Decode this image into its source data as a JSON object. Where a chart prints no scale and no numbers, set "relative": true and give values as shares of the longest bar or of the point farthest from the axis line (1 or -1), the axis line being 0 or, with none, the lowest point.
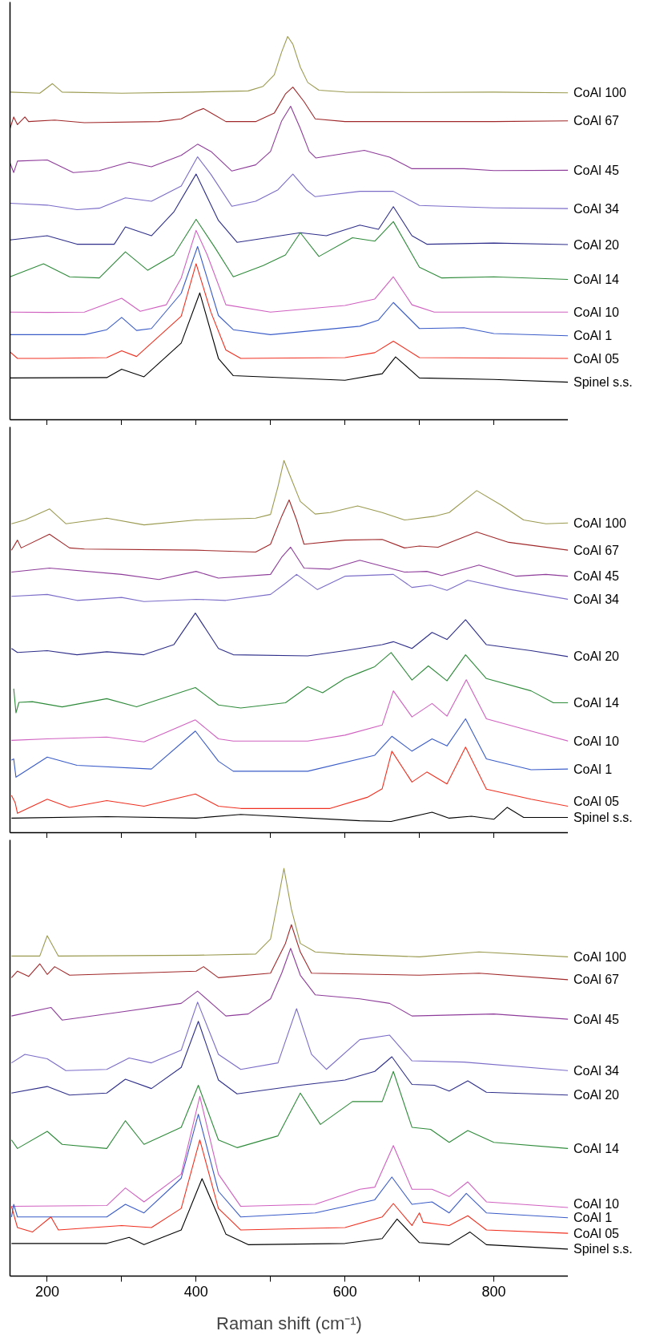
{
  "chart_data": [
    {
      "type": "line",
      "relative": true,
      "xlim": [
        150,
        900
      ],
      "xticks": [
        200,
        300,
        400,
        500,
        600,
        700,
        800
      ],
      "tick_labels": false,
      "series": [
        {
          "name": "CoAl 100",
          "color": "#9a9a50",
          "x": [
            150,
            190,
            207,
            220,
            300,
            400,
            470,
            490,
            505,
            515,
            523,
            530,
            540,
            550,
            565,
            600,
            700,
            800,
            900
          ],
          "values": [
            0.855,
            0.852,
            0.877,
            0.855,
            0.852,
            0.855,
            0.858,
            0.87,
            0.9,
            0.96,
            1.0,
            0.98,
            0.92,
            0.88,
            0.86,
            0.855,
            0.854,
            0.855,
            0.853
          ]
        },
        {
          "name": "CoAl 67",
          "color": "#a0282a",
          "x": [
            150,
            155,
            160,
            170,
            175,
            210,
            250,
            350,
            380,
            400,
            410,
            425,
            440,
            480,
            505,
            520,
            530,
            545,
            560,
            600,
            700,
            800,
            900
          ],
          "values": [
            0.76,
            0.79,
            0.77,
            0.79,
            0.778,
            0.782,
            0.775,
            0.778,
            0.785,
            0.805,
            0.812,
            0.795,
            0.778,
            0.778,
            0.8,
            0.85,
            0.868,
            0.83,
            0.785,
            0.778,
            0.778,
            0.778,
            0.78
          ]
        },
        {
          "name": "CoAl 45",
          "color": "#8e3c9a",
          "x": [
            150,
            155,
            160,
            200,
            235,
            270,
            310,
            340,
            380,
            402,
            420,
            448,
            480,
            500,
            515,
            527,
            540,
            552,
            561,
            626,
            660,
            690,
            760,
            800,
            900
          ],
          "values": [
            0.67,
            0.645,
            0.675,
            0.678,
            0.645,
            0.65,
            0.672,
            0.66,
            0.69,
            0.719,
            0.7,
            0.649,
            0.665,
            0.7,
            0.78,
            0.818,
            0.76,
            0.7,
            0.683,
            0.703,
            0.685,
            0.655,
            0.655,
            0.65,
            0.651
          ]
        },
        {
          "name": "CoAl 34",
          "color": "#7b6cc8",
          "x": [
            150,
            200,
            240,
            270,
            305,
            340,
            380,
            402,
            420,
            448,
            480,
            510,
            530,
            548,
            560,
            620,
            665,
            700,
            800,
            900
          ],
          "values": [
            0.565,
            0.56,
            0.548,
            0.552,
            0.579,
            0.57,
            0.61,
            0.686,
            0.64,
            0.557,
            0.57,
            0.6,
            0.641,
            0.6,
            0.582,
            0.596,
            0.596,
            0.559,
            0.553,
            0.551
          ]
        },
        {
          "name": "CoAl 20",
          "color": "#2e2e8a",
          "x": [
            150,
            200,
            240,
            290,
            305,
            340,
            370,
            400,
            430,
            455,
            540,
            575,
            620,
            645,
            665,
            690,
            710,
            800,
            900
          ],
          "values": [
            0.469,
            0.48,
            0.458,
            0.458,
            0.503,
            0.48,
            0.542,
            0.641,
            0.52,
            0.463,
            0.488,
            0.48,
            0.508,
            0.497,
            0.556,
            0.48,
            0.458,
            0.461,
            0.457
          ]
        },
        {
          "name": "CoAl 14",
          "color": "#2e8b3a",
          "x": [
            150,
            195,
            230,
            270,
            305,
            335,
            370,
            400,
            425,
            450,
            490,
            520,
            540,
            565,
            610,
            640,
            665,
            700,
            730,
            800,
            900
          ],
          "values": [
            0.373,
            0.407,
            0.373,
            0.37,
            0.438,
            0.39,
            0.43,
            0.523,
            0.45,
            0.373,
            0.402,
            0.43,
            0.488,
            0.426,
            0.475,
            0.466,
            0.517,
            0.398,
            0.37,
            0.373,
            0.366
          ]
        },
        {
          "name": "CoAl 10",
          "color": "#d060c0",
          "x": [
            150,
            200,
            250,
            300,
            325,
            360,
            380,
            400,
            415,
            440,
            500,
            600,
            640,
            665,
            690,
            720,
            900
          ],
          "values": [
            0.281,
            0.28,
            0.281,
            0.317,
            0.283,
            0.3,
            0.37,
            0.494,
            0.43,
            0.3,
            0.281,
            0.298,
            0.315,
            0.373,
            0.3,
            0.281,
            0.281
          ]
        },
        {
          "name": "CoAl 1",
          "color": "#3a5cc8",
          "x": [
            150,
            250,
            280,
            300,
            320,
            340,
            380,
            402,
            430,
            450,
            500,
            620,
            645,
            665,
            700,
            760,
            800,
            900
          ],
          "values": [
            0.222,
            0.222,
            0.235,
            0.267,
            0.233,
            0.238,
            0.33,
            0.452,
            0.272,
            0.235,
            0.222,
            0.244,
            0.26,
            0.306,
            0.238,
            0.24,
            0.225,
            0.219
          ]
        },
        {
          "name": "CoAl 05",
          "color": "#f03020",
          "x": [
            150,
            160,
            200,
            280,
            300,
            320,
            380,
            400,
            420,
            440,
            460,
            600,
            640,
            665,
            700,
            900
          ],
          "values": [
            0.177,
            0.16,
            0.16,
            0.162,
            0.18,
            0.165,
            0.27,
            0.407,
            0.28,
            0.182,
            0.16,
            0.162,
            0.175,
            0.205,
            0.162,
            0.16
          ]
        },
        {
          "name": "Spinel s.s.",
          "color": "#000000",
          "x": [
            150,
            280,
            300,
            330,
            380,
            405,
            430,
            450,
            600,
            650,
            668,
            700,
            800,
            900
          ],
          "values": [
            0.109,
            0.11,
            0.132,
            0.112,
            0.2,
            0.331,
            0.16,
            0.115,
            0.103,
            0.12,
            0.164,
            0.109,
            0.105,
            0.098
          ]
        }
      ]
    },
    {
      "type": "line",
      "relative": true,
      "xlim": [
        150,
        900
      ],
      "xticks": [
        200,
        300,
        400,
        500,
        600,
        700,
        800
      ],
      "tick_labels": false,
      "series": [
        {
          "name": "CoAl 100",
          "color": "#9a9a50",
          "x": [
            152,
            170,
            203,
            225,
            280,
            330,
            400,
            480,
            500,
            510,
            518,
            528,
            540,
            560,
            580,
            617,
            650,
            680,
            720,
            740,
            777,
            810,
            840,
            870,
            900
          ],
          "values": [
            0.83,
            0.84,
            0.87,
            0.83,
            0.845,
            0.827,
            0.84,
            0.845,
            0.855,
            0.93,
            1.0,
            0.95,
            0.89,
            0.856,
            0.86,
            0.878,
            0.86,
            0.84,
            0.85,
            0.86,
            0.919,
            0.88,
            0.84,
            0.83,
            0.832
          ]
        },
        {
          "name": "CoAl 67",
          "color": "#a0282a",
          "x": [
            152,
            160,
            165,
            203,
            230,
            250,
            400,
            480,
            500,
            515,
            525,
            535,
            545,
            600,
            650,
            680,
            700,
            725,
            777,
            820,
            900
          ],
          "values": [
            0.759,
            0.786,
            0.765,
            0.802,
            0.765,
            0.762,
            0.759,
            0.754,
            0.775,
            0.85,
            0.894,
            0.84,
            0.775,
            0.786,
            0.788,
            0.765,
            0.77,
            0.767,
            0.808,
            0.78,
            0.759
          ]
        },
        {
          "name": "CoAl 45",
          "color": "#8e3c9a",
          "x": [
            152,
            203,
            300,
            350,
            400,
            430,
            500,
            515,
            527,
            545,
            580,
            620,
            680,
            710,
            730,
            780,
            830,
            870,
            900
          ],
          "values": [
            0.7,
            0.711,
            0.694,
            0.68,
            0.702,
            0.684,
            0.694,
            0.74,
            0.767,
            0.711,
            0.708,
            0.732,
            0.7,
            0.702,
            0.691,
            0.719,
            0.689,
            0.694,
            0.689
          ]
        },
        {
          "name": "CoAl 34",
          "color": "#7b6cc8",
          "x": [
            152,
            200,
            240,
            300,
            330,
            400,
            440,
            500,
            520,
            535,
            563,
            600,
            665,
            690,
            715,
            737,
            765,
            820,
            900
          ],
          "values": [
            0.635,
            0.64,
            0.624,
            0.632,
            0.621,
            0.627,
            0.624,
            0.64,
            0.67,
            0.694,
            0.653,
            0.689,
            0.694,
            0.659,
            0.665,
            0.651,
            0.678,
            0.654,
            0.627
          ]
        },
        {
          "name": "CoAl 20",
          "color": "#2e2e8a",
          "x": [
            152,
            160,
            200,
            240,
            280,
            330,
            370,
            399,
            430,
            450,
            550,
            600,
            650,
            665,
            690,
            717,
            737,
            762,
            790,
            850,
            900
          ],
          "values": [
            0.495,
            0.484,
            0.489,
            0.478,
            0.486,
            0.478,
            0.505,
            0.59,
            0.495,
            0.478,
            0.475,
            0.489,
            0.505,
            0.513,
            0.495,
            0.538,
            0.519,
            0.572,
            0.505,
            0.489,
            0.473
          ]
        },
        {
          "name": "CoAl 14",
          "color": "#2e8b3a",
          "x": [
            155,
            158,
            162,
            180,
            220,
            280,
            320,
            399,
            430,
            460,
            520,
            550,
            570,
            600,
            620,
            640,
            662,
            690,
            712,
            737,
            762,
            790,
            850,
            880,
            900
          ],
          "values": [
            0.387,
            0.322,
            0.35,
            0.352,
            0.338,
            0.36,
            0.338,
            0.39,
            0.343,
            0.335,
            0.349,
            0.392,
            0.376,
            0.414,
            0.43,
            0.446,
            0.484,
            0.41,
            0.448,
            0.408,
            0.478,
            0.414,
            0.381,
            0.349,
            0.349
          ]
        },
        {
          "name": "CoAl 10",
          "color": "#d060c0",
          "x": [
            152,
            200,
            280,
            330,
            399,
            430,
            450,
            550,
            600,
            650,
            665,
            690,
            717,
            737,
            763,
            790,
            850,
            900
          ],
          "values": [
            0.248,
            0.252,
            0.257,
            0.244,
            0.303,
            0.252,
            0.246,
            0.246,
            0.262,
            0.289,
            0.381,
            0.311,
            0.347,
            0.313,
            0.411,
            0.306,
            0.273,
            0.246
          ]
        },
        {
          "name": "CoAl 1",
          "color": "#3a5cc8",
          "x": [
            152,
            155,
            158,
            200,
            240,
            340,
            399,
            430,
            450,
            550,
            640,
            663,
            690,
            717,
            737,
            762,
            790,
            850,
            900
          ],
          "values": [
            0.195,
            0.198,
            0.149,
            0.203,
            0.181,
            0.171,
            0.273,
            0.192,
            0.165,
            0.165,
            0.208,
            0.259,
            0.219,
            0.252,
            0.233,
            0.306,
            0.198,
            0.169,
            0.171
          ]
        },
        {
          "name": "CoAl 05",
          "color": "#f03020",
          "x": [
            152,
            157,
            160,
            200,
            230,
            280,
            330,
            399,
            430,
            460,
            580,
            630,
            650,
            663,
            690,
            710,
            737,
            762,
            790,
            850,
            900
          ],
          "values": [
            0.1,
            0.08,
            0.052,
            0.09,
            0.068,
            0.086,
            0.071,
            0.104,
            0.071,
            0.065,
            0.065,
            0.095,
            0.118,
            0.219,
            0.136,
            0.163,
            0.131,
            0.23,
            0.117,
            0.09,
            0.071
          ]
        },
        {
          "name": "Spinel s.s.",
          "color": "#000000",
          "x": [
            152,
            280,
            400,
            460,
            620,
            662,
            717,
            740,
            770,
            800,
            818,
            840,
            900
          ],
          "values": [
            0.039,
            0.043,
            0.039,
            0.049,
            0.032,
            0.03,
            0.055,
            0.039,
            0.044,
            0.036,
            0.068,
            0.041,
            0.041
          ]
        }
      ]
    },
    {
      "type": "line",
      "relative": true,
      "xlim": [
        150,
        900
      ],
      "xticks": [
        200,
        {
          "value": 300,
          "label": null
        },
        400,
        {
          "value": 500,
          "label": null
        },
        600,
        {
          "value": 700,
          "label": null
        },
        800
      ],
      "xlabel": "Raman shift (cm⁻¹)",
      "series": [
        {
          "name": "CoAl 100",
          "color": "#9a9a50",
          "x": [
            152,
            190,
            200,
            215,
            400,
            480,
            500,
            510,
            518,
            528,
            540,
            560,
            600,
            700,
            780,
            900
          ],
          "values": [
            0.785,
            0.785,
            0.835,
            0.785,
            0.787,
            0.79,
            0.827,
            0.921,
            1.0,
            0.9,
            0.816,
            0.795,
            0.79,
            0.783,
            0.795,
            0.783
          ]
        },
        {
          "name": "CoAl 67",
          "color": "#a0282a",
          "x": [
            152,
            160,
            175,
            190,
            200,
            210,
            230,
            400,
            410,
            430,
            500,
            520,
            528,
            540,
            555,
            700,
            780,
            900
          ],
          "values": [
            0.732,
            0.748,
            0.735,
            0.766,
            0.74,
            0.759,
            0.738,
            0.748,
            0.759,
            0.732,
            0.743,
            0.816,
            0.862,
            0.795,
            0.743,
            0.738,
            0.743,
            0.727
          ]
        },
        {
          "name": "CoAl 45",
          "color": "#8e3c9a",
          "x": [
            152,
            205,
            220,
            300,
            380,
            402,
            440,
            470,
            500,
            515,
            527,
            540,
            560,
            620,
            660,
            690,
            800,
            900
          ],
          "values": [
            0.638,
            0.659,
            0.628,
            0.648,
            0.669,
            0.699,
            0.638,
            0.643,
            0.68,
            0.743,
            0.804,
            0.738,
            0.69,
            0.68,
            0.669,
            0.638,
            0.643,
            0.63
          ]
        },
        {
          "name": "CoAl 34",
          "color": "#7b6cc8",
          "x": [
            152,
            170,
            200,
            225,
            280,
            310,
            340,
            380,
            402,
            430,
            460,
            510,
            535,
            555,
            575,
            620,
            660,
            690,
            760,
            900
          ],
          "values": [
            0.523,
            0.544,
            0.533,
            0.504,
            0.507,
            0.535,
            0.523,
            0.554,
            0.672,
            0.544,
            0.507,
            0.523,
            0.656,
            0.544,
            0.507,
            0.58,
            0.591,
            0.528,
            0.525,
            0.504
          ]
        },
        {
          "name": "CoAl 20",
          "color": "#2e2e8a",
          "x": [
            152,
            200,
            230,
            280,
            305,
            340,
            380,
            403,
            430,
            455,
            540,
            600,
            640,
            663,
            690,
            720,
            740,
            765,
            790,
            900
          ],
          "values": [
            0.449,
            0.465,
            0.444,
            0.449,
            0.483,
            0.46,
            0.512,
            0.625,
            0.481,
            0.447,
            0.468,
            0.481,
            0.502,
            0.538,
            0.47,
            0.468,
            0.454,
            0.479,
            0.451,
            0.444
          ]
        },
        {
          "name": "CoAl 14",
          "color": "#2e8b3a",
          "x": [
            152,
            160,
            200,
            220,
            280,
            305,
            330,
            380,
            403,
            430,
            455,
            510,
            540,
            567,
            610,
            650,
            665,
            690,
            715,
            740,
            765,
            800,
            900
          ],
          "values": [
            0.334,
            0.313,
            0.355,
            0.323,
            0.313,
            0.381,
            0.323,
            0.365,
            0.468,
            0.334,
            0.315,
            0.344,
            0.449,
            0.372,
            0.428,
            0.428,
            0.502,
            0.365,
            0.36,
            0.328,
            0.357,
            0.328,
            0.313
          ]
        },
        {
          "name": "CoAl 10",
          "color": "#d060c0",
          "x": [
            152,
            280,
            305,
            330,
            380,
            405,
            430,
            460,
            560,
            620,
            640,
            665,
            690,
            717,
            740,
            765,
            790,
            900
          ],
          "values": [
            0.171,
            0.173,
            0.216,
            0.182,
            0.25,
            0.441,
            0.25,
            0.171,
            0.176,
            0.213,
            0.218,
            0.32,
            0.213,
            0.213,
            0.195,
            0.231,
            0.182,
            0.168
          ]
        },
        {
          "name": "CoAl 1",
          "color": "#3a5cc8",
          "x": [
            152,
            155,
            160,
            280,
            305,
            330,
            380,
            403,
            430,
            460,
            560,
            640,
            663,
            690,
            717,
            740,
            763,
            790,
            900
          ],
          "values": [
            0.145,
            0.176,
            0.145,
            0.145,
            0.176,
            0.155,
            0.24,
            0.397,
            0.208,
            0.145,
            0.155,
            0.187,
            0.243,
            0.176,
            0.182,
            0.155,
            0.203,
            0.155,
            0.143
          ]
        },
        {
          "name": "CoAl 05",
          "color": "#f03020",
          "x": [
            152,
            160,
            180,
            205,
            215,
            300,
            340,
            380,
            405,
            430,
            460,
            600,
            650,
            665,
            690,
            700,
            705,
            740,
            765,
            790,
            900
          ],
          "values": [
            0.171,
            0.119,
            0.108,
            0.145,
            0.113,
            0.124,
            0.119,
            0.166,
            0.334,
            0.166,
            0.113,
            0.119,
            0.145,
            0.178,
            0.124,
            0.155,
            0.132,
            0.124,
            0.148,
            0.113,
            0.105
          ]
        },
        {
          "name": "Spinel s.s.",
          "color": "#000000",
          "x": [
            152,
            280,
            310,
            330,
            380,
            408,
            440,
            470,
            600,
            650,
            670,
            700,
            740,
            768,
            790,
            900
          ],
          "values": [
            0.08,
            0.08,
            0.095,
            0.077,
            0.113,
            0.239,
            0.103,
            0.077,
            0.08,
            0.092,
            0.14,
            0.082,
            0.077,
            0.108,
            0.077,
            0.066
          ]
        }
      ]
    }
  ]
}
